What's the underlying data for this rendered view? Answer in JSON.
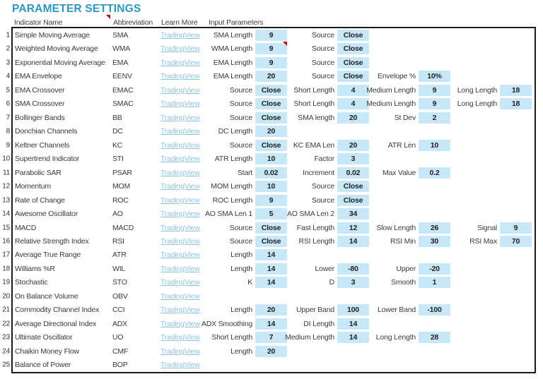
{
  "title": "PARAMETER SETTINGS",
  "headers": {
    "indicator": "Indicator Name",
    "abbreviation": "Abbreviation",
    "learn_more": "Learn More",
    "input_parameters": "Input Parameters"
  },
  "link_label": "TradingView",
  "colors": {
    "title_accent": "#2b96be",
    "link": "#8cc5dc",
    "value_cell_bg": "#c9e8f7",
    "comment_marker": "#c00000",
    "table_border": "#1b1b1b"
  },
  "icons": {
    "header_comment_marker": "red-triangle-comment",
    "wma_cell_comment_marker": "red-triangle-comment"
  },
  "rows": [
    {
      "num": "1",
      "name": "Simple Moving Average",
      "abbr": "SMA",
      "params": [
        {
          "label": "SMA Length",
          "value": "9"
        },
        {
          "label": "Source",
          "value": "Close"
        }
      ]
    },
    {
      "num": "2",
      "name": "Weighted Moving Average",
      "abbr": "WMA",
      "params": [
        {
          "label": "WMA Length",
          "value": "9",
          "comment": true
        },
        {
          "label": "Source",
          "value": "Close"
        }
      ]
    },
    {
      "num": "3",
      "name": "Exponential Moving Average",
      "abbr": "EMA",
      "params": [
        {
          "label": "EMA Length",
          "value": "9"
        },
        {
          "label": "Source",
          "value": "Close"
        }
      ]
    },
    {
      "num": "4",
      "name": "EMA Envelope",
      "abbr": "EENV",
      "params": [
        {
          "label": "EMA Length",
          "value": "20"
        },
        {
          "label": "Source",
          "value": "Close"
        },
        {
          "label": "Envelope %",
          "value": "10%"
        }
      ]
    },
    {
      "num": "5",
      "name": "EMA Crossover",
      "abbr": "EMAC",
      "params": [
        {
          "label": "Source",
          "value": "Close"
        },
        {
          "label": "Short Length",
          "value": "4"
        },
        {
          "label": "Medium Length",
          "value": "9"
        },
        {
          "label": "Long Length",
          "value": "18"
        }
      ]
    },
    {
      "num": "6",
      "name": "SMA Crossover",
      "abbr": "SMAC",
      "params": [
        {
          "label": "Source",
          "value": "Close"
        },
        {
          "label": "Short Length",
          "value": "4"
        },
        {
          "label": "Medium Length",
          "value": "9"
        },
        {
          "label": "Long Length",
          "value": "18"
        }
      ]
    },
    {
      "num": "7",
      "name": "Bollinger Bands",
      "abbr": "BB",
      "params": [
        {
          "label": "Source",
          "value": "Close"
        },
        {
          "label": "SMA length",
          "value": "20"
        },
        {
          "label": "St Dev",
          "value": "2"
        }
      ]
    },
    {
      "num": "8",
      "name": "Donchian Channels",
      "abbr": "DC",
      "params": [
        {
          "label": "DC Length",
          "value": "20"
        }
      ]
    },
    {
      "num": "9",
      "name": "Keltner Channels",
      "abbr": "KC",
      "params": [
        {
          "label": "Source",
          "value": "Close"
        },
        {
          "label": "KC EMA Len",
          "value": "20"
        },
        {
          "label": "ATR Len",
          "value": "10"
        }
      ]
    },
    {
      "num": "10",
      "name": "Supertrend Indicator",
      "abbr": "STI",
      "params": [
        {
          "label": "ATR Length",
          "value": "10"
        },
        {
          "label": "Factor",
          "value": "3"
        }
      ]
    },
    {
      "num": "11",
      "name": "Parabolic SAR",
      "abbr": "PSAR",
      "params": [
        {
          "label": "Start",
          "value": "0.02"
        },
        {
          "label": "Increment",
          "value": "0.02"
        },
        {
          "label": "Max Value",
          "value": "0.2"
        }
      ]
    },
    {
      "num": "12",
      "name": "Momentum",
      "abbr": "MOM",
      "params": [
        {
          "label": "MOM Length",
          "value": "10"
        },
        {
          "label": "Source",
          "value": "Close"
        }
      ]
    },
    {
      "num": "13",
      "name": "Rate of Change",
      "abbr": "ROC",
      "params": [
        {
          "label": "ROC Length",
          "value": "9"
        },
        {
          "label": "Source",
          "value": "Close"
        }
      ]
    },
    {
      "num": "14",
      "name": "Awesome Oscillator",
      "abbr": "AO",
      "params": [
        {
          "label": "AO SMA Len 1",
          "value": "5"
        },
        {
          "label": "AO SMA Len 2",
          "value": "34"
        }
      ]
    },
    {
      "num": "15",
      "name": "MACD",
      "abbr": "MACD",
      "params": [
        {
          "label": "Source",
          "value": "Close"
        },
        {
          "label": "Fast Length",
          "value": "12"
        },
        {
          "label": "Slow Length",
          "value": "26"
        },
        {
          "label": "Signal",
          "value": "9"
        }
      ]
    },
    {
      "num": "16",
      "name": "Relative Strength Index",
      "abbr": "RSI",
      "params": [
        {
          "label": "Source",
          "value": "Close"
        },
        {
          "label": "RSI Length",
          "value": "14"
        },
        {
          "label": "RSI Min",
          "value": "30"
        },
        {
          "label": "RSI Max",
          "value": "70"
        }
      ]
    },
    {
      "num": "17",
      "name": "Average True Range",
      "abbr": "ATR",
      "params": [
        {
          "label": "Length",
          "value": "14"
        }
      ]
    },
    {
      "num": "18",
      "name": "Williams %R",
      "abbr": "WIL",
      "params": [
        {
          "label": "Length",
          "value": "14"
        },
        {
          "label": "Lower",
          "value": "-80"
        },
        {
          "label": "Upper",
          "value": "-20"
        }
      ]
    },
    {
      "num": "19",
      "name": "Stochastic",
      "abbr": "STO",
      "params": [
        {
          "label": "K",
          "value": "14"
        },
        {
          "label": "D",
          "value": "3"
        },
        {
          "label": "Smooth",
          "value": "1"
        }
      ]
    },
    {
      "num": "20",
      "name": "On Balance Volume",
      "abbr": "OBV",
      "params": []
    },
    {
      "num": "21",
      "name": "Commodity Channel Index",
      "abbr": "CCI",
      "params": [
        {
          "label": "Length",
          "value": "20"
        },
        {
          "label": "Upper Band",
          "value": "100"
        },
        {
          "label": "Lower Band",
          "value": "-100"
        }
      ]
    },
    {
      "num": "22",
      "name": "Average Directional Index",
      "abbr": "ADX",
      "params": [
        {
          "label": "ADX Smoothing",
          "value": "14"
        },
        {
          "label": "DI Length",
          "value": "14"
        }
      ]
    },
    {
      "num": "23",
      "name": "Ultimate Oscillator",
      "abbr": "UO",
      "params": [
        {
          "label": "Short Length",
          "value": "7"
        },
        {
          "label": "Medium Length",
          "value": "14"
        },
        {
          "label": "Long Length",
          "value": "28"
        }
      ]
    },
    {
      "num": "24",
      "name": "Chaikin Money Flow",
      "abbr": "CMF",
      "params": [
        {
          "label": "Length",
          "value": "20"
        }
      ]
    },
    {
      "num": "25",
      "name": "Balance of Power",
      "abbr": "BOP",
      "params": []
    }
  ]
}
